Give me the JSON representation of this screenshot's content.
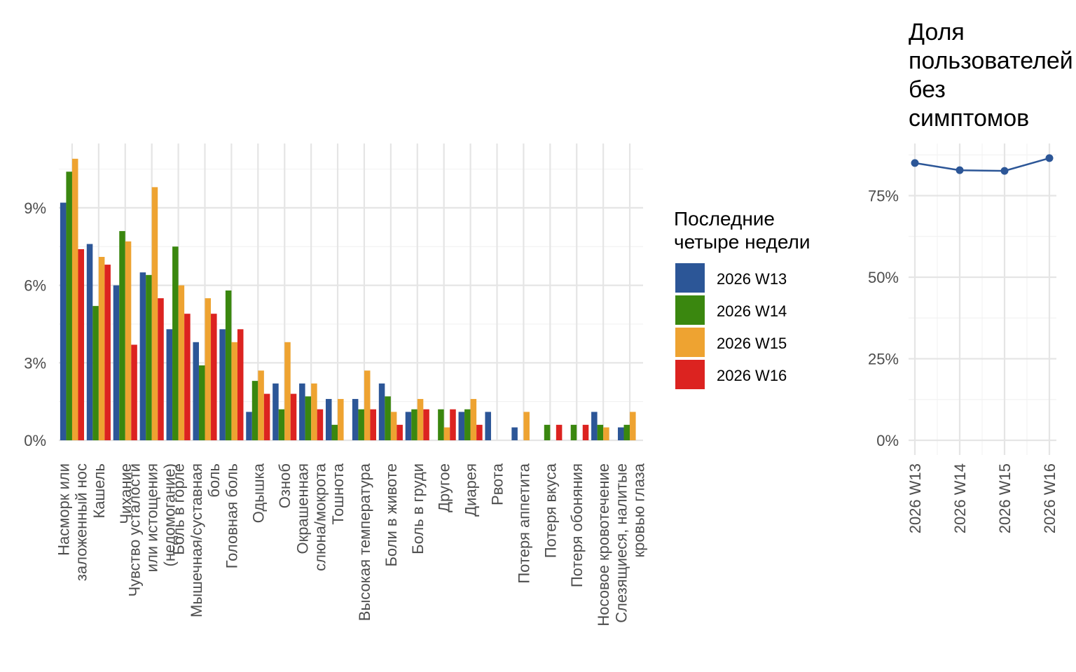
{
  "chart_data": [
    {
      "type": "bar",
      "categories": [
        "Насморк или заложенный нос",
        "Кашель",
        "Чихание",
        "Чувство усталости или истощения (недомогание)",
        "Боль в горле",
        "Мышечная/суставная боль",
        "Головная боль",
        "Одышка",
        "Озноб",
        "Окрашенная слюна/мокрота",
        "Тошнота",
        "Высокая температура",
        "Боли в животе",
        "Боль в груди",
        "Другое",
        "Диарея",
        "Рвота",
        "Потеря аппетита",
        "Потеря вкуса",
        "Потеря обоняния",
        "Носовое кровотечение",
        "Слезящиеся, налитые кровью глаза"
      ],
      "category_lines": [
        [
          "Насморк или",
          "заложенный нос"
        ],
        [
          "Кашель"
        ],
        [
          "Чихание"
        ],
        [
          "Чувство усталости",
          "или истощения",
          "(недомогание)"
        ],
        [
          "Боль в горле"
        ],
        [
          "Мышечная/суставная",
          "боль"
        ],
        [
          "Головная боль"
        ],
        [
          "Одышка"
        ],
        [
          "Озноб"
        ],
        [
          "Окрашенная",
          "слюна/мокрота"
        ],
        [
          "Тошнота"
        ],
        [
          "Высокая температура"
        ],
        [
          "Боли в животе"
        ],
        [
          "Боль в груди"
        ],
        [
          "Другое"
        ],
        [
          "Диарея"
        ],
        [
          "Рвота"
        ],
        [
          "Потеря аппетита"
        ],
        [
          "Потеря вкуса"
        ],
        [
          "Потеря обоняния"
        ],
        [
          "Носовое кровотечение"
        ],
        [
          "Слезящиеся, налитые",
          "кровью глаза"
        ]
      ],
      "series": [
        {
          "name": "2026 W13",
          "color": "#2c5697",
          "values": [
            9.2,
            7.6,
            6.0,
            6.5,
            4.3,
            3.8,
            4.3,
            1.1,
            2.2,
            2.2,
            1.6,
            1.6,
            2.2,
            1.1,
            0,
            1.1,
            1.1,
            0.5,
            0,
            0,
            1.1,
            0.5
          ]
        },
        {
          "name": "2026 W14",
          "color": "#3a870f",
          "values": [
            10.4,
            5.2,
            8.1,
            6.4,
            7.5,
            2.9,
            5.8,
            2.3,
            1.2,
            1.7,
            0.6,
            1.2,
            1.7,
            1.2,
            1.2,
            1.2,
            0,
            0,
            0.6,
            0.6,
            0.6,
            0.6
          ]
        },
        {
          "name": "2026 W15",
          "color": "#eea331",
          "values": [
            10.9,
            7.1,
            7.7,
            9.8,
            6.0,
            5.5,
            3.8,
            2.7,
            3.8,
            2.2,
            1.6,
            2.7,
            1.1,
            1.6,
            0.5,
            1.6,
            0,
            1.1,
            0,
            0,
            0.5,
            1.1
          ]
        },
        {
          "name": "2026 W16",
          "color": "#dc2320",
          "values": [
            7.4,
            6.8,
            3.7,
            5.5,
            4.9,
            4.9,
            4.3,
            1.8,
            1.8,
            1.2,
            0,
            1.2,
            0.6,
            1.2,
            1.2,
            0.6,
            0,
            0,
            0.6,
            0.6,
            0,
            0
          ]
        }
      ],
      "yticks": [
        "0%",
        "3%",
        "6%",
        "9%"
      ],
      "ylim": [
        0,
        11.5
      ],
      "grid": true,
      "legend": {
        "title_lines": [
          "Последние",
          "четыре недели"
        ],
        "placement": "right"
      }
    },
    {
      "type": "line",
      "title_lines": [
        "Доля",
        "пользователей",
        "без",
        "симптомов"
      ],
      "x": [
        "2026 W13",
        "2026 W14",
        "2026 W15",
        "2026 W16"
      ],
      "series": [
        {
          "color": "#2c5697",
          "values": [
            85.0,
            82.8,
            82.6,
            86.5
          ]
        }
      ],
      "yticks": [
        "0%",
        "25%",
        "50%",
        "75%"
      ],
      "ylim": [
        0,
        90
      ],
      "grid": true
    }
  ]
}
